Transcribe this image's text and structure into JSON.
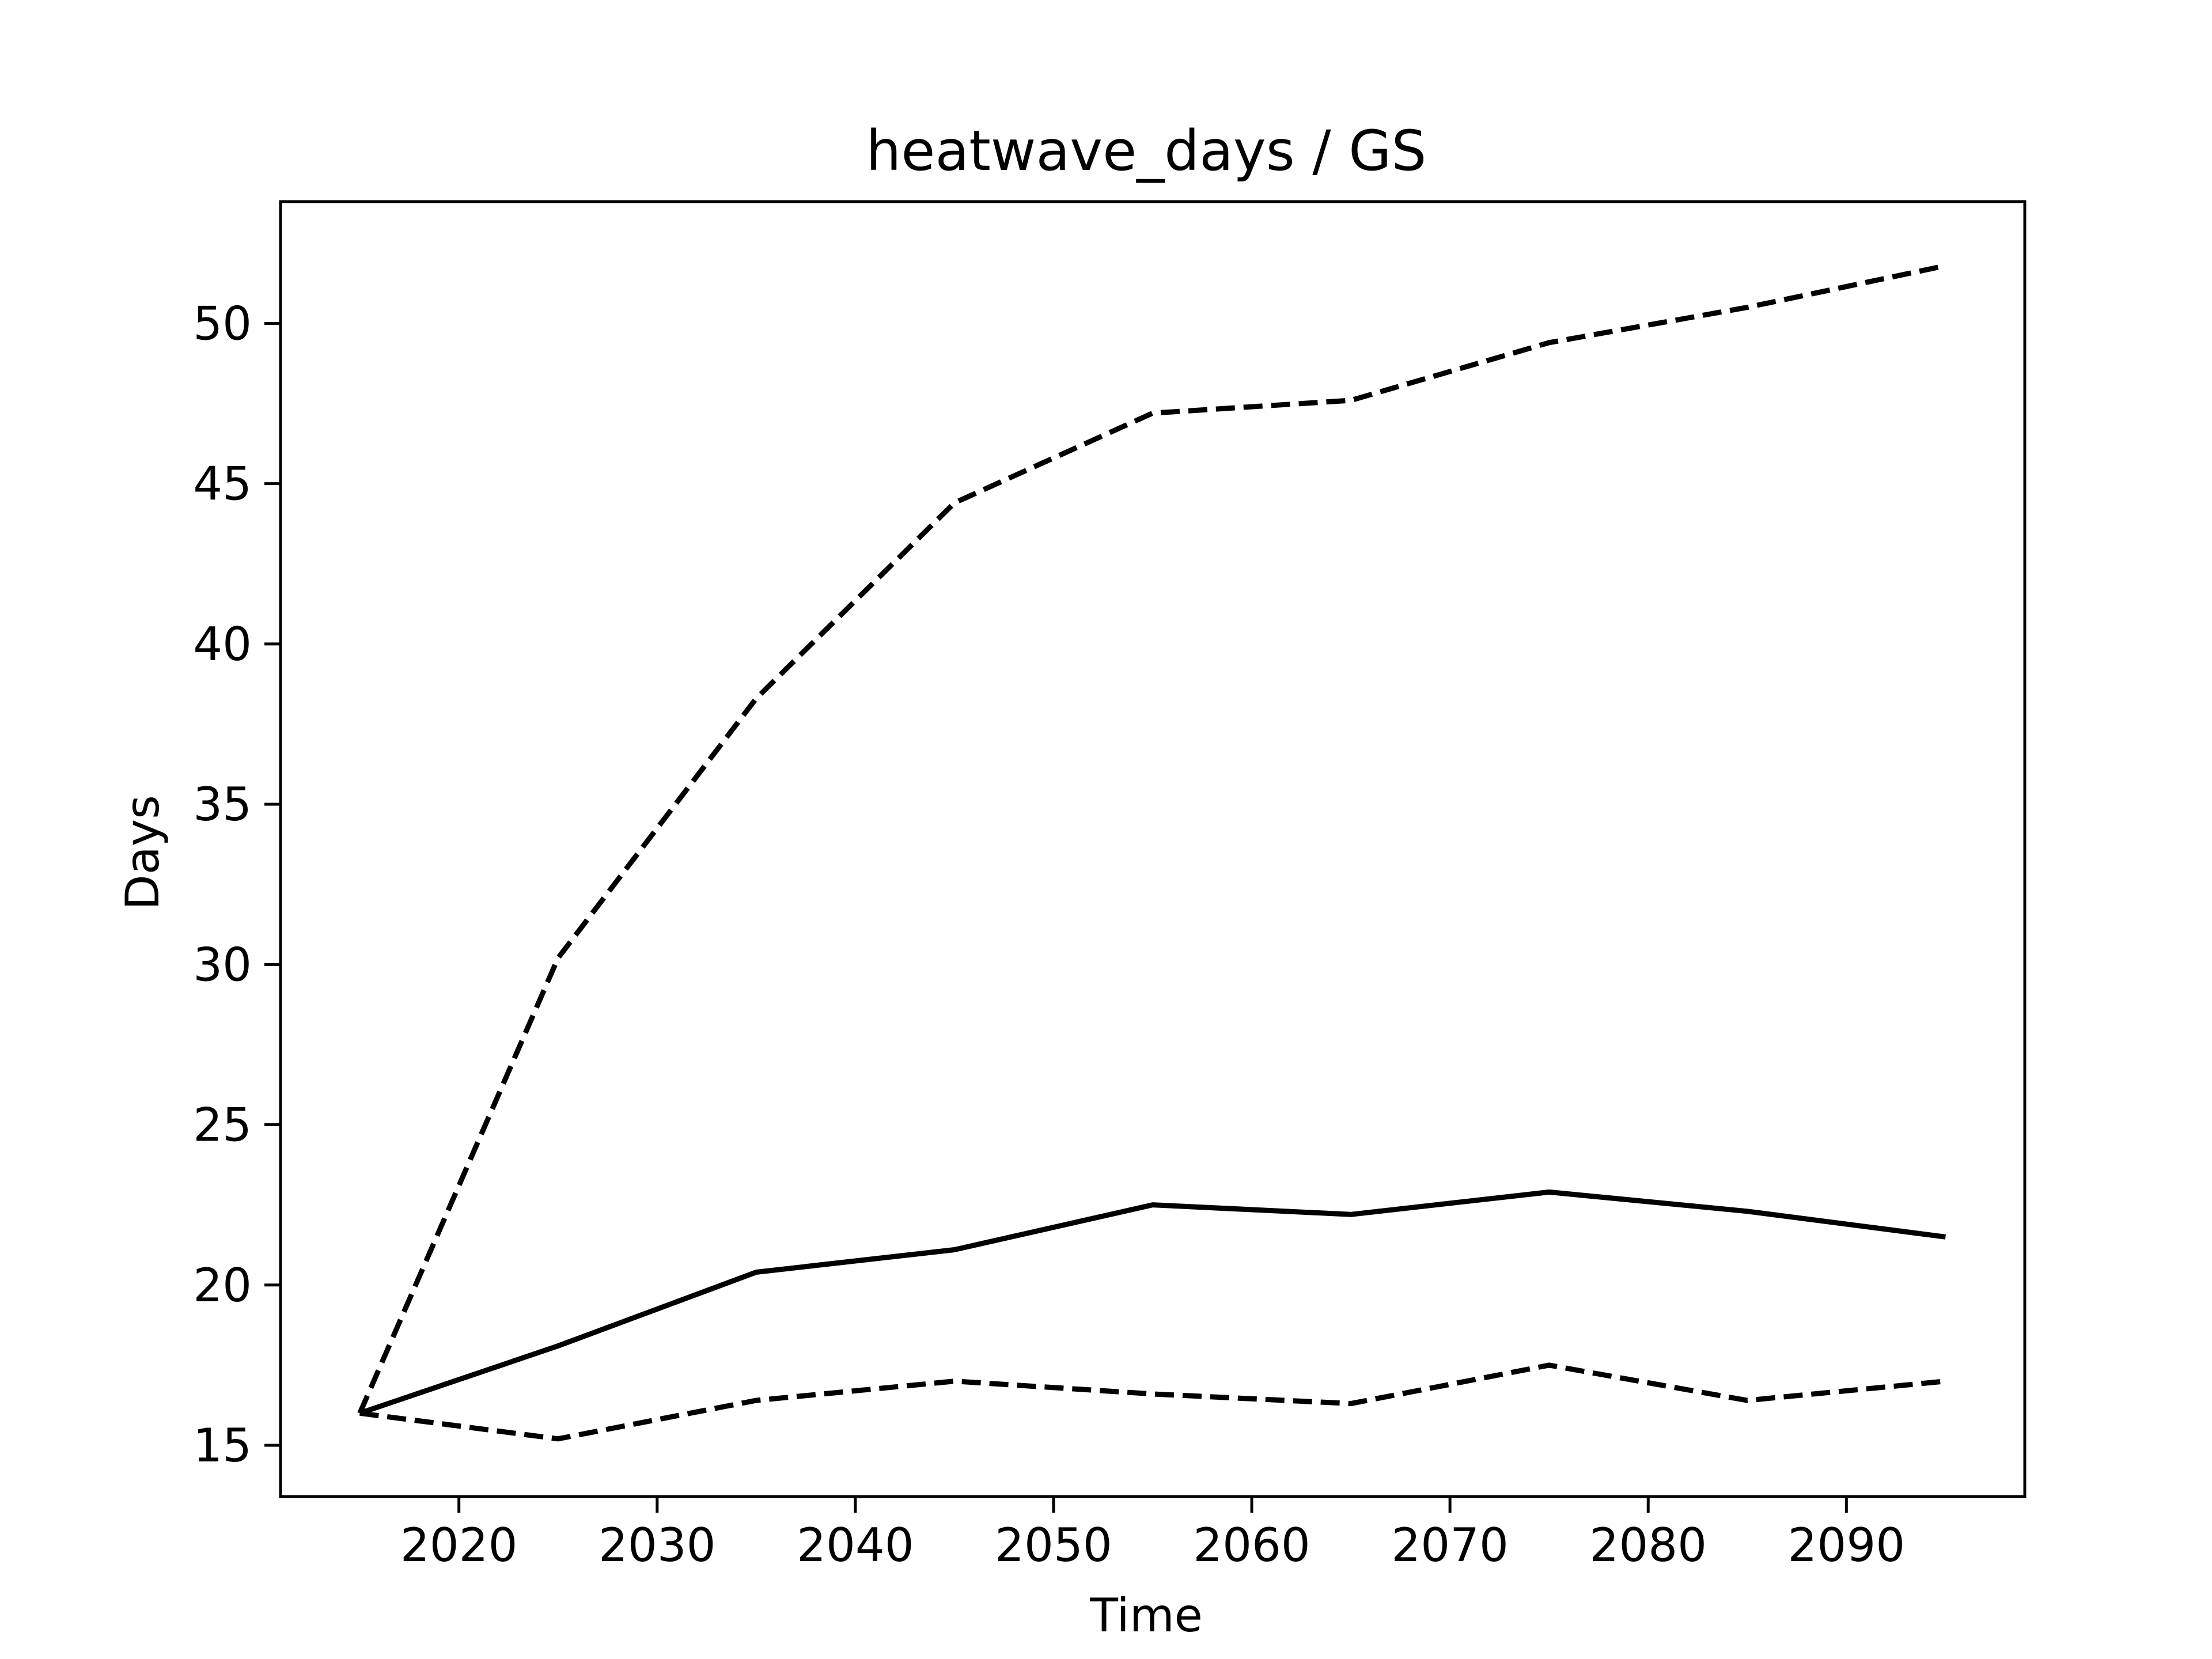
{
  "chart_data": {
    "type": "line",
    "title": "heatwave_days / GS",
    "xlabel": "Time",
    "ylabel": "Days",
    "xlim": [
      2011,
      2099
    ],
    "ylim": [
      13.4,
      53.8
    ],
    "xticks": [
      2020,
      2030,
      2040,
      2050,
      2060,
      2070,
      2080,
      2090
    ],
    "yticks": [
      15,
      20,
      25,
      30,
      35,
      40,
      45,
      50
    ],
    "grid": false,
    "legend": "none",
    "x": [
      2015,
      2025,
      2035,
      2045,
      2055,
      2065,
      2075,
      2085,
      2095
    ],
    "series": [
      {
        "style": "dashed",
        "color": "#000000",
        "values": [
          16.0,
          30.2,
          38.3,
          44.4,
          47.2,
          47.6,
          49.4,
          50.5,
          51.8
        ]
      },
      {
        "style": "solid",
        "color": "#000000",
        "values": [
          16.0,
          18.1,
          20.4,
          21.1,
          22.5,
          22.2,
          22.9,
          22.3,
          21.5
        ]
      },
      {
        "style": "dashed",
        "color": "#000000",
        "values": [
          16.0,
          15.2,
          16.4,
          17.0,
          16.6,
          16.3,
          17.5,
          16.4,
          17.0
        ]
      }
    ]
  }
}
